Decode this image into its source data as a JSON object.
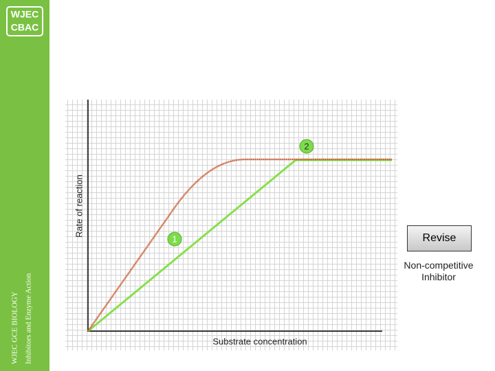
{
  "sidebar": {
    "logo": [
      "WJEC",
      "CBAC"
    ],
    "course": "WJEC GCE BIOLOGY",
    "topic": "Inhibitors and Enzyme Action"
  },
  "graph": {
    "y_axis_label": "Rate of reaction",
    "x_axis_label": "Substrate concentration",
    "markers": [
      "1",
      "2"
    ]
  },
  "buttons": {
    "revise": "Revise"
  },
  "caption": "Non-competitive Inhibitor"
}
